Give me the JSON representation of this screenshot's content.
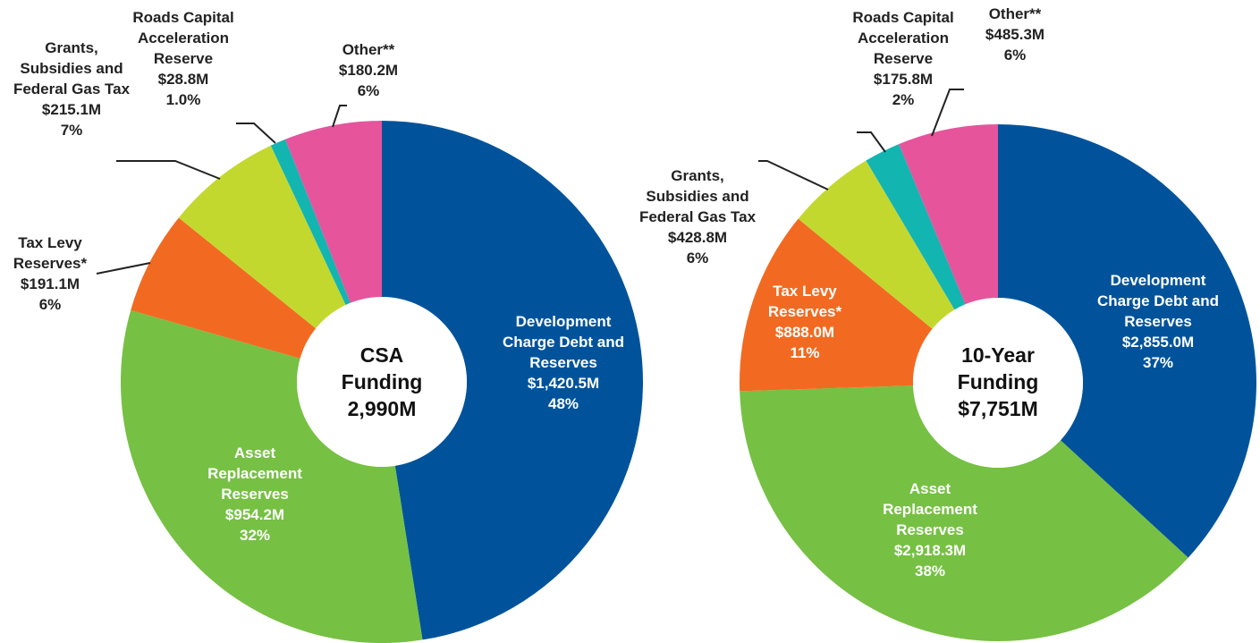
{
  "chart_data": [
    {
      "type": "donut",
      "center_title": "CSA Funding",
      "center_value": "2,990M",
      "categories": [
        "Development Charge Debt and Reserves",
        "Asset Replacement Reserves",
        "Tax Levy Reserves*",
        "Grants, Subsidies and Federal Gas Tax",
        "Roads Capital Acceleration Reserve",
        "Other**"
      ],
      "values": [
        1420.5,
        954.2,
        191.1,
        215.1,
        28.8,
        180.2
      ],
      "value_labels": [
        "$1,420.5M",
        "$954.2M",
        "$191.1M",
        "$215.1M",
        "$28.8M",
        "$180.2M"
      ],
      "percents": [
        48,
        32,
        6,
        7,
        1,
        6
      ],
      "percent_labels": [
        "48%",
        "32%",
        "6%",
        "7%",
        "1.0%",
        "6%"
      ],
      "colors": [
        "#00539b",
        "#76c043",
        "#f26a21",
        "#c3d82f",
        "#13b5b1",
        "#e6549b"
      ]
    },
    {
      "type": "donut",
      "center_title": "10-Year Funding",
      "center_value": "$7,751M",
      "categories": [
        "Development Charge Debt and Reserves",
        "Asset Replacement Reserves",
        "Tax Levy Reserves*",
        "Grants, Subsidies and Federal Gas Tax",
        "Roads Capital Acceleration Reserve",
        "Other**"
      ],
      "values": [
        2855.0,
        2918.3,
        888.0,
        428.8,
        175.8,
        485.3
      ],
      "value_labels": [
        "$2,855.0M",
        "$2,918.3M",
        "$888.0M",
        "$428.8M",
        "$175.8M",
        "$485.3M"
      ],
      "percents": [
        37,
        38,
        11,
        6,
        2,
        6
      ],
      "percent_labels": [
        "37%",
        "38%",
        "11%",
        "6%",
        "2%",
        "6%"
      ],
      "colors": [
        "#00539b",
        "#76c043",
        "#f26a21",
        "#c3d82f",
        "#13b5b1",
        "#e6549b"
      ]
    }
  ]
}
